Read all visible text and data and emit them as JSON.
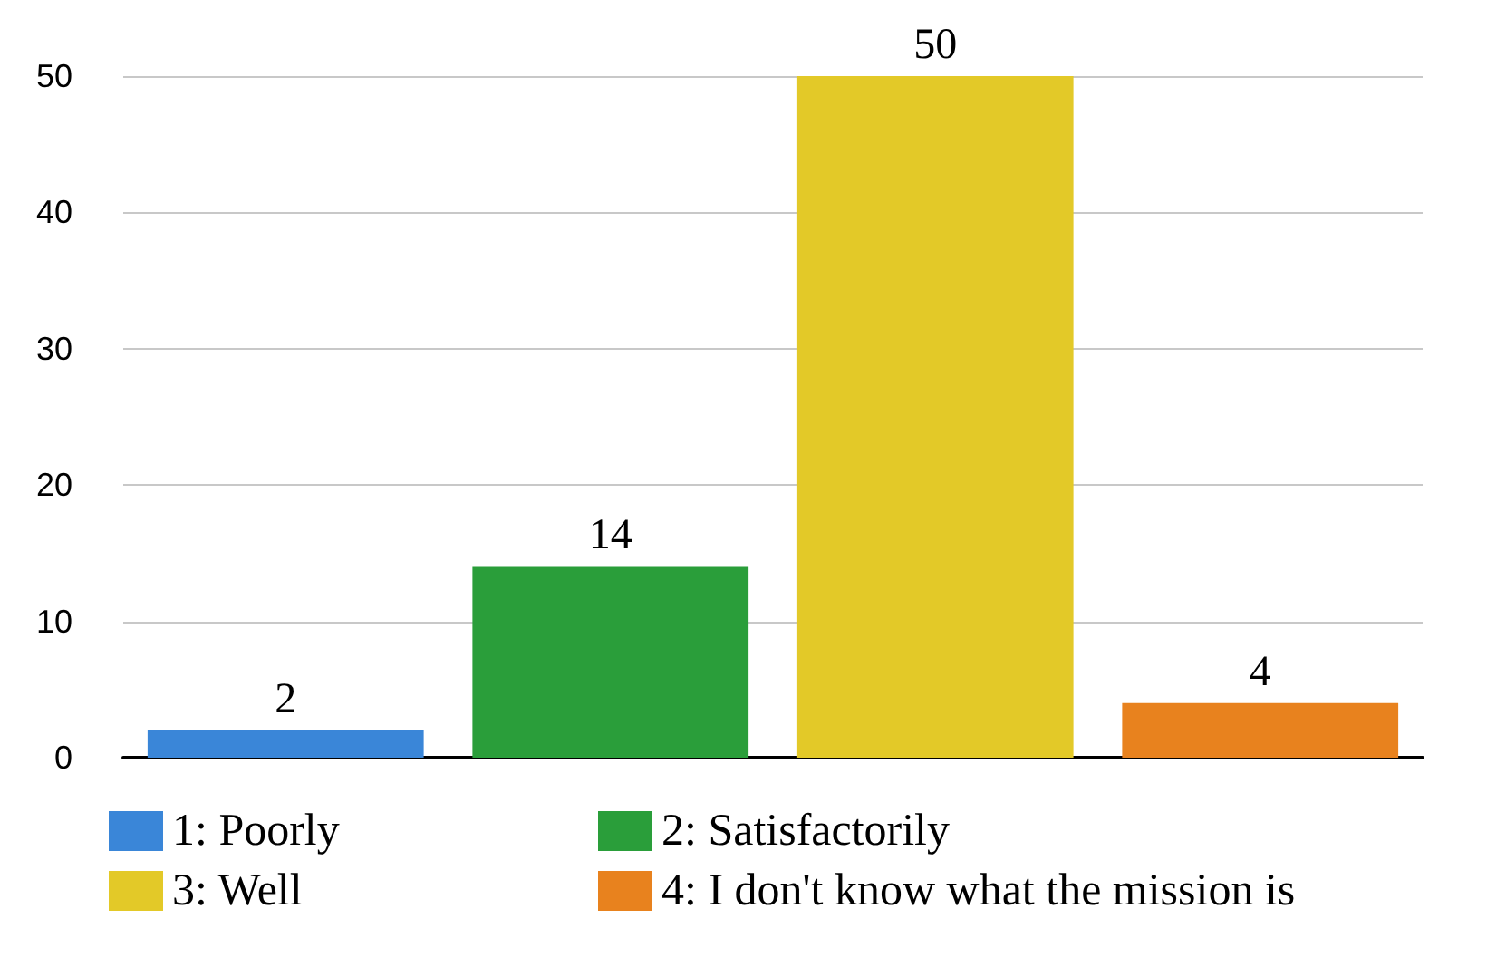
{
  "chart_data": {
    "type": "bar",
    "categories": [
      null,
      null,
      null,
      null
    ],
    "stacked": true,
    "data_labels": true,
    "grid": "y",
    "legend": "bottom",
    "ylim": [
      0,
      50
    ],
    "yticks": [
      0,
      10,
      20,
      30,
      40,
      50
    ],
    "tick_labels": "y",
    "series": [
      {
        "name": "1: Poorly",
        "color": "#3a86d8",
        "values": [
          2,
          null,
          null,
          null
        ]
      },
      {
        "name": "2: Satisfactorily",
        "color": "#2a9e3a",
        "values": [
          null,
          14,
          null,
          null
        ]
      },
      {
        "name": "3: Well",
        "color": "#e3c928",
        "values": [
          null,
          null,
          50,
          null
        ]
      },
      {
        "name": "4: I don't know what the mission is",
        "color": "#e8821e",
        "values": [
          null,
          null,
          null,
          4
        ]
      }
    ]
  }
}
